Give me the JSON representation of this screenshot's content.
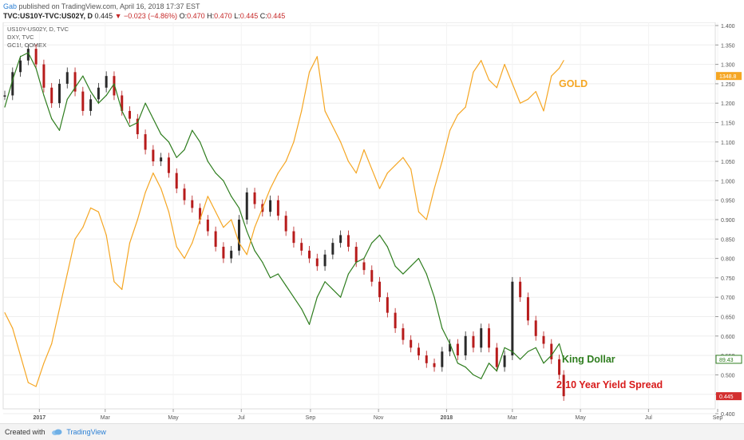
{
  "header": {
    "author": "Gab",
    "published": "published on TradingView.com, April 16, 2018 17:37 EST",
    "symbol": "TVC:US10Y-TVC:US02Y, D",
    "last": "0.445",
    "change": "▼ −0.023 (−4.86%)",
    "ohlc_o_label": "O:",
    "ohlc_o": "0.470",
    "ohlc_h_label": "H:",
    "ohlc_h": "0.470",
    "ohlc_l_label": "L:",
    "ohlc_l": "0.445",
    "ohlc_c_label": "C:",
    "ohlc_c": "0.445"
  },
  "footer": {
    "created_with": "Created with",
    "brand": "TradingView"
  },
  "colors": {
    "gold": "#f5a623",
    "dollar": "#2e7d1e",
    "candle_up": "#2a2a2a",
    "candle_down": "#b71c1c",
    "axis_text": "#555555"
  },
  "chart_data": {
    "type": "line",
    "legend_items": [
      "US10Y-US02Y, D, TVC",
      "DXY, TVC",
      "GC1!, COMEX"
    ],
    "x_ticks": [
      "2017",
      "Mar",
      "May",
      "Jul",
      "Sep",
      "Nov",
      "2018",
      "Mar",
      "May",
      "Jul",
      "Sep"
    ],
    "y_ticks": [
      "1.400",
      "1.350",
      "1.300",
      "1.250",
      "1.200",
      "1.150",
      "1.100",
      "1.050",
      "1.000",
      "0.950",
      "0.900",
      "0.850",
      "0.800",
      "0.750",
      "0.700",
      "0.650",
      "0.600",
      "0.550",
      "0.500",
      "0.450",
      "0.400"
    ],
    "ylim": [
      0.39,
      1.41
    ],
    "annotations": [
      "GOLD",
      "King Dollar",
      "2-10 Year Yield Spread"
    ],
    "price_labels": [
      "1348.8",
      "89.43",
      "0.445"
    ],
    "series": [
      {
        "name": "2-10 Year Yield Spread",
        "style": "candles",
        "x": [
          "2016-12-01",
          "2016-12-08",
          "2016-12-15",
          "2016-12-22",
          "2016-12-29",
          "2017-01-05",
          "2017-01-12",
          "2017-01-19",
          "2017-01-26",
          "2017-02-02",
          "2017-02-09",
          "2017-02-16",
          "2017-02-23",
          "2017-03-02",
          "2017-03-09",
          "2017-03-16",
          "2017-03-23",
          "2017-03-30",
          "2017-04-06",
          "2017-04-13",
          "2017-04-20",
          "2017-04-27",
          "2017-05-04",
          "2017-05-11",
          "2017-05-18",
          "2017-05-25",
          "2017-06-01",
          "2017-06-08",
          "2017-06-15",
          "2017-06-22",
          "2017-06-29",
          "2017-07-06",
          "2017-07-13",
          "2017-07-20",
          "2017-07-27",
          "2017-08-03",
          "2017-08-10",
          "2017-08-17",
          "2017-08-24",
          "2017-08-31",
          "2017-09-07",
          "2017-09-14",
          "2017-09-21",
          "2017-09-28",
          "2017-10-05",
          "2017-10-12",
          "2017-10-19",
          "2017-10-26",
          "2017-11-02",
          "2017-11-09",
          "2017-11-16",
          "2017-11-23",
          "2017-11-30",
          "2017-12-07",
          "2017-12-14",
          "2017-12-21",
          "2017-12-28",
          "2018-01-04",
          "2018-01-11",
          "2018-01-18",
          "2018-01-25",
          "2018-02-01",
          "2018-02-08",
          "2018-02-15",
          "2018-02-22",
          "2018-03-01",
          "2018-03-08",
          "2018-03-15",
          "2018-03-22",
          "2018-03-29",
          "2018-04-05",
          "2018-04-12",
          "2018-04-16"
        ],
        "values": [
          1.22,
          1.28,
          1.31,
          1.34,
          1.3,
          1.24,
          1.2,
          1.25,
          1.28,
          1.23,
          1.18,
          1.21,
          1.24,
          1.27,
          1.22,
          1.18,
          1.16,
          1.12,
          1.08,
          1.05,
          1.06,
          1.02,
          0.98,
          0.95,
          0.93,
          0.9,
          0.87,
          0.83,
          0.8,
          0.82,
          0.9,
          0.97,
          0.94,
          0.92,
          0.95,
          0.91,
          0.87,
          0.84,
          0.82,
          0.8,
          0.78,
          0.81,
          0.84,
          0.86,
          0.83,
          0.79,
          0.77,
          0.74,
          0.7,
          0.66,
          0.62,
          0.59,
          0.57,
          0.55,
          0.53,
          0.52,
          0.56,
          0.58,
          0.55,
          0.6,
          0.57,
          0.62,
          0.57,
          0.52,
          0.55,
          0.74,
          0.7,
          0.64,
          0.6,
          0.58,
          0.54,
          0.5,
          0.445
        ]
      },
      {
        "name": "King Dollar",
        "style": "line",
        "x": [
          "2016-12-01",
          "2016-12-08",
          "2016-12-15",
          "2016-12-22",
          "2016-12-29",
          "2017-01-05",
          "2017-01-12",
          "2017-01-19",
          "2017-01-26",
          "2017-02-02",
          "2017-02-09",
          "2017-02-16",
          "2017-02-23",
          "2017-03-02",
          "2017-03-09",
          "2017-03-16",
          "2017-03-23",
          "2017-03-30",
          "2017-04-06",
          "2017-04-13",
          "2017-04-20",
          "2017-04-27",
          "2017-05-04",
          "2017-05-11",
          "2017-05-18",
          "2017-05-25",
          "2017-06-01",
          "2017-06-08",
          "2017-06-15",
          "2017-06-22",
          "2017-06-29",
          "2017-07-06",
          "2017-07-13",
          "2017-07-20",
          "2017-07-27",
          "2017-08-03",
          "2017-08-10",
          "2017-08-17",
          "2017-08-24",
          "2017-08-31",
          "2017-09-07",
          "2017-09-14",
          "2017-09-21",
          "2017-09-28",
          "2017-10-05",
          "2017-10-12",
          "2017-10-19",
          "2017-10-26",
          "2017-11-02",
          "2017-11-09",
          "2017-11-16",
          "2017-11-23",
          "2017-11-30",
          "2017-12-07",
          "2017-12-14",
          "2017-12-21",
          "2017-12-28",
          "2018-01-04",
          "2018-01-11",
          "2018-01-18",
          "2018-01-25",
          "2018-02-01",
          "2018-02-08",
          "2018-02-15",
          "2018-02-22",
          "2018-03-01",
          "2018-03-08",
          "2018-03-15",
          "2018-03-22",
          "2018-03-29",
          "2018-04-05",
          "2018-04-12",
          "2018-04-16"
        ],
        "values": [
          1.19,
          1.26,
          1.32,
          1.33,
          1.29,
          1.22,
          1.16,
          1.13,
          1.21,
          1.24,
          1.27,
          1.23,
          1.2,
          1.22,
          1.25,
          1.18,
          1.14,
          1.15,
          1.2,
          1.16,
          1.12,
          1.1,
          1.06,
          1.08,
          1.13,
          1.1,
          1.05,
          1.02,
          1.0,
          0.96,
          0.93,
          0.87,
          0.82,
          0.79,
          0.75,
          0.76,
          0.73,
          0.7,
          0.67,
          0.63,
          0.7,
          0.74,
          0.72,
          0.7,
          0.76,
          0.79,
          0.8,
          0.84,
          0.86,
          0.83,
          0.78,
          0.76,
          0.78,
          0.8,
          0.76,
          0.7,
          0.62,
          0.58,
          0.53,
          0.52,
          0.5,
          0.49,
          0.53,
          0.51,
          0.57,
          0.56,
          0.54,
          0.56,
          0.57,
          0.53,
          0.55,
          0.58,
          0.54
        ]
      },
      {
        "name": "GOLD",
        "style": "line",
        "x": [
          "2016-12-01",
          "2016-12-08",
          "2016-12-15",
          "2016-12-22",
          "2016-12-29",
          "2017-01-05",
          "2017-01-12",
          "2017-01-19",
          "2017-01-26",
          "2017-02-02",
          "2017-02-09",
          "2017-02-16",
          "2017-02-23",
          "2017-03-02",
          "2017-03-09",
          "2017-03-16",
          "2017-03-23",
          "2017-03-30",
          "2017-04-06",
          "2017-04-13",
          "2017-04-20",
          "2017-04-27",
          "2017-05-04",
          "2017-05-11",
          "2017-05-18",
          "2017-05-25",
          "2017-06-01",
          "2017-06-08",
          "2017-06-15",
          "2017-06-22",
          "2017-06-29",
          "2017-07-06",
          "2017-07-13",
          "2017-07-20",
          "2017-07-27",
          "2017-08-03",
          "2017-08-10",
          "2017-08-17",
          "2017-08-24",
          "2017-08-31",
          "2017-09-07",
          "2017-09-14",
          "2017-09-21",
          "2017-09-28",
          "2017-10-05",
          "2017-10-12",
          "2017-10-19",
          "2017-10-26",
          "2017-11-02",
          "2017-11-09",
          "2017-11-16",
          "2017-11-23",
          "2017-11-30",
          "2017-12-07",
          "2017-12-14",
          "2017-12-21",
          "2017-12-28",
          "2018-01-04",
          "2018-01-11",
          "2018-01-18",
          "2018-01-25",
          "2018-02-01",
          "2018-02-08",
          "2018-02-15",
          "2018-02-22",
          "2018-03-01",
          "2018-03-08",
          "2018-03-15",
          "2018-03-22",
          "2018-03-29",
          "2018-04-05",
          "2018-04-12",
          "2018-04-16"
        ],
        "values": [
          0.66,
          0.62,
          0.55,
          0.48,
          0.47,
          0.53,
          0.58,
          0.67,
          0.76,
          0.85,
          0.88,
          0.93,
          0.92,
          0.86,
          0.74,
          0.72,
          0.84,
          0.9,
          0.97,
          1.02,
          0.98,
          0.92,
          0.83,
          0.8,
          0.84,
          0.9,
          0.96,
          0.92,
          0.88,
          0.9,
          0.84,
          0.81,
          0.88,
          0.93,
          0.98,
          1.02,
          1.05,
          1.1,
          1.18,
          1.28,
          1.32,
          1.18,
          1.14,
          1.1,
          1.05,
          1.02,
          1.08,
          1.03,
          0.98,
          1.02,
          1.04,
          1.06,
          1.03,
          0.92,
          0.9,
          0.98,
          1.05,
          1.13,
          1.17,
          1.19,
          1.28,
          1.31,
          1.26,
          1.24,
          1.3,
          1.25,
          1.2,
          1.21,
          1.23,
          1.18,
          1.27,
          1.29,
          1.31
        ]
      }
    ]
  }
}
